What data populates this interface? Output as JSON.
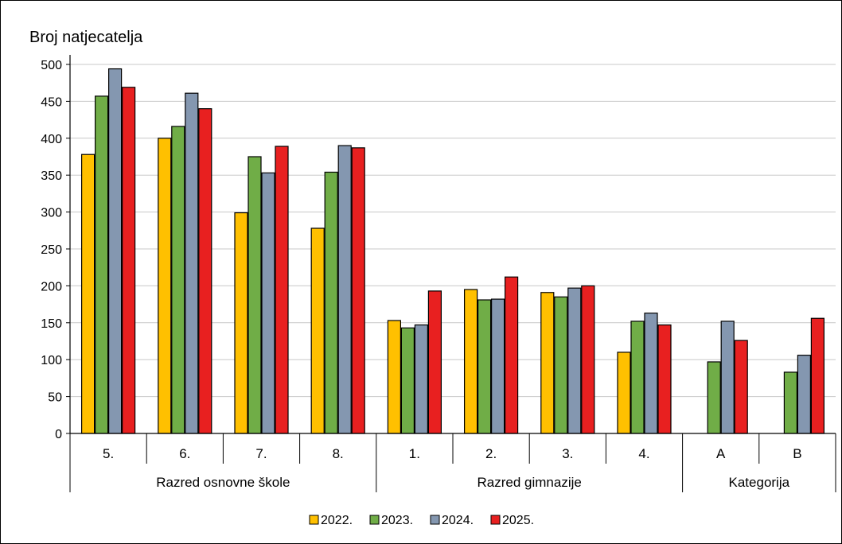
{
  "chart_data": {
    "type": "bar",
    "ylabel": "Broj natjecatelja",
    "ylim": [
      0,
      500
    ],
    "ytick_step": 50,
    "grid": true,
    "legend_position": "bottom",
    "groups": [
      {
        "label": "Razred osnovne škole",
        "categories": [
          "5.",
          "6.",
          "7.",
          "8."
        ]
      },
      {
        "label": "Razred gimnazije",
        "categories": [
          "1.",
          "2.",
          "3.",
          "4."
        ]
      },
      {
        "label": "Kategorija",
        "categories": [
          "A",
          "B"
        ]
      }
    ],
    "categories": [
      "5.",
      "6.",
      "7.",
      "8.",
      "1.",
      "2.",
      "3.",
      "4.",
      "A",
      "B"
    ],
    "series": [
      {
        "name": "2022.",
        "color": "#FFC000",
        "values": [
          378,
          400,
          299,
          278,
          153,
          195,
          191,
          110,
          null,
          null
        ]
      },
      {
        "name": "2023.",
        "color": "#70AD47",
        "values": [
          457,
          416,
          375,
          354,
          143,
          181,
          185,
          152,
          97,
          83
        ]
      },
      {
        "name": "2024.",
        "color": "#8497B0",
        "values": [
          494,
          461,
          353,
          390,
          147,
          182,
          197,
          163,
          152,
          106
        ]
      },
      {
        "name": "2025.",
        "color": "#E82020",
        "values": [
          469,
          440,
          389,
          387,
          193,
          212,
          200,
          147,
          126,
          156
        ]
      }
    ]
  }
}
